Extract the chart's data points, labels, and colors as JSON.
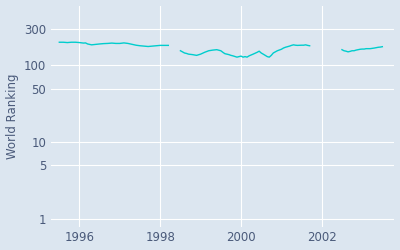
{
  "ylabel": "World Ranking",
  "line_color": "#00CDCD",
  "bg_color": "#DCE6F0",
  "ax_bg_color": "#DCE6F0",
  "fig_bg_color": "#DCE6F0",
  "line_width": 1.0,
  "yticks": [
    1,
    5,
    10,
    50,
    100,
    300
  ],
  "ytick_labels": [
    "1",
    "5",
    "10",
    "50",
    "100",
    "300"
  ],
  "xticks": [
    1996,
    1998,
    2000,
    2002
  ],
  "xlim": [
    1995.3,
    2003.8
  ],
  "ylim": [
    0.8,
    600
  ],
  "segments": [
    {
      "x": [
        1995.5,
        1995.6,
        1995.7,
        1995.8,
        1995.9,
        1996.0,
        1996.1,
        1996.15,
        1996.2,
        1996.3,
        1996.5,
        1996.6,
        1996.7,
        1996.8,
        1996.9,
        1997.0,
        1997.1,
        1997.2,
        1997.3,
        1997.4,
        1997.5,
        1997.6,
        1997.7,
        1997.8,
        1997.9,
        1998.0,
        1998.1,
        1998.2
      ],
      "y": [
        200,
        200,
        198,
        200,
        200,
        198,
        195,
        196,
        190,
        185,
        190,
        192,
        193,
        195,
        193,
        193,
        196,
        193,
        188,
        183,
        180,
        178,
        176,
        178,
        180,
        182,
        182,
        182
      ]
    },
    {
      "x": [
        1998.5,
        1998.55,
        1998.6,
        1998.65,
        1998.7,
        1998.8,
        1998.9,
        1999.0,
        1999.1,
        1999.2,
        1999.3,
        1999.4,
        1999.5,
        1999.55,
        1999.6,
        1999.65,
        1999.7,
        1999.75,
        1999.8,
        1999.9,
        2000.0,
        2000.05,
        2000.1,
        2000.15,
        2000.2,
        2000.3,
        2000.4,
        2000.45,
        2000.5,
        2000.55,
        2000.6,
        2000.65,
        2000.7,
        2000.75,
        2000.8,
        2000.9,
        2001.0,
        2001.05,
        2001.1,
        2001.15,
        2001.2,
        2001.25,
        2001.3,
        2001.35,
        2001.4,
        2001.5,
        2001.55,
        2001.6,
        2001.65,
        2001.7
      ],
      "y": [
        155,
        150,
        145,
        143,
        140,
        138,
        135,
        140,
        148,
        155,
        158,
        160,
        155,
        148,
        142,
        140,
        138,
        135,
        133,
        128,
        132,
        128,
        130,
        128,
        133,
        140,
        148,
        153,
        145,
        140,
        135,
        130,
        128,
        135,
        145,
        155,
        162,
        168,
        172,
        175,
        178,
        182,
        185,
        183,
        182,
        183,
        183,
        185,
        182,
        180
      ]
    },
    {
      "x": [
        2002.5,
        2002.55,
        2002.6,
        2002.65,
        2002.7,
        2002.75,
        2002.8,
        2002.85,
        2002.9,
        2002.95,
        2003.0,
        2003.05,
        2003.1,
        2003.15,
        2003.2,
        2003.3,
        2003.35,
        2003.4,
        2003.45,
        2003.5
      ],
      "y": [
        160,
        155,
        153,
        150,
        152,
        155,
        155,
        158,
        160,
        162,
        163,
        163,
        165,
        165,
        165,
        168,
        170,
        172,
        173,
        175
      ]
    }
  ]
}
